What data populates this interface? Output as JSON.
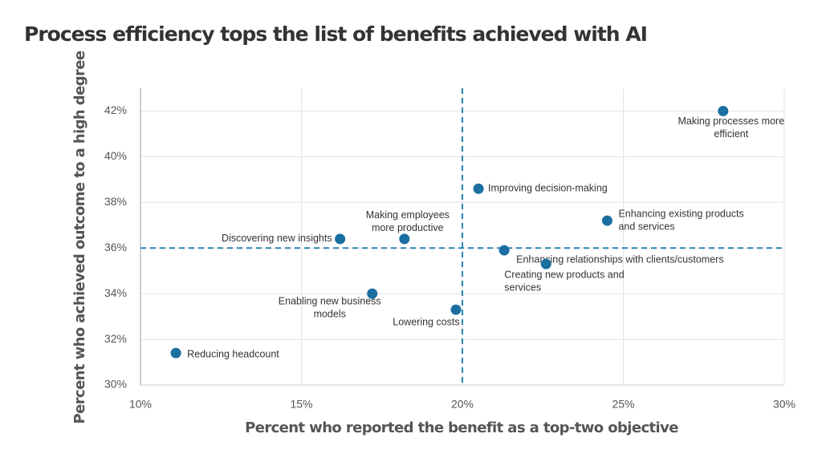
{
  "chart_data": {
    "type": "scatter",
    "title": "Process efficiency tops the list of benefits achieved with AI",
    "x_label": "Percent who reported the benefit as a top-two objective",
    "y_label": "Percent who achieved outcome to a high degree",
    "xlim": [
      10,
      30
    ],
    "ylim": [
      30,
      43
    ],
    "xticks": [
      {
        "value": 10,
        "label": "10%"
      },
      {
        "value": 15,
        "label": "15%"
      },
      {
        "value": 20,
        "label": "20%"
      },
      {
        "value": 25,
        "label": "25%"
      },
      {
        "value": 30,
        "label": "30%"
      }
    ],
    "yticks": [
      {
        "value": 30,
        "label": "30%"
      },
      {
        "value": 32,
        "label": "32%"
      },
      {
        "value": 34,
        "label": "34%"
      },
      {
        "value": 36,
        "label": "36%"
      },
      {
        "value": 38,
        "label": "38%"
      },
      {
        "value": 40,
        "label": "40%"
      },
      {
        "value": 42,
        "label": "42%"
      }
    ],
    "grid": true,
    "color": "#1a6fa0",
    "reference_lines": {
      "x": 20,
      "y": 36,
      "color": "#2a85b8"
    },
    "x": [
      28.1,
      20.5,
      24.5,
      16.2,
      18.2,
      21.3,
      22.6,
      17.2,
      19.8,
      11.1
    ],
    "values": [
      42.0,
      38.6,
      37.2,
      36.4,
      36.4,
      35.9,
      35.3,
      34.0,
      33.3,
      31.4
    ],
    "labels": [
      [
        "Making processes more",
        "efficient"
      ],
      [
        "Improving decision-making"
      ],
      [
        "Enhancing existing products",
        "and services"
      ],
      [
        "Discovering new insights"
      ],
      [
        "Making employees",
        "more productive"
      ],
      [
        "Enhancing relationships with clients/customers"
      ],
      [
        "Creating new products and",
        "services"
      ],
      [
        "Enabling new business",
        "models"
      ],
      [
        "Lowering costs"
      ],
      [
        "Reducing headcount"
      ]
    ]
  }
}
